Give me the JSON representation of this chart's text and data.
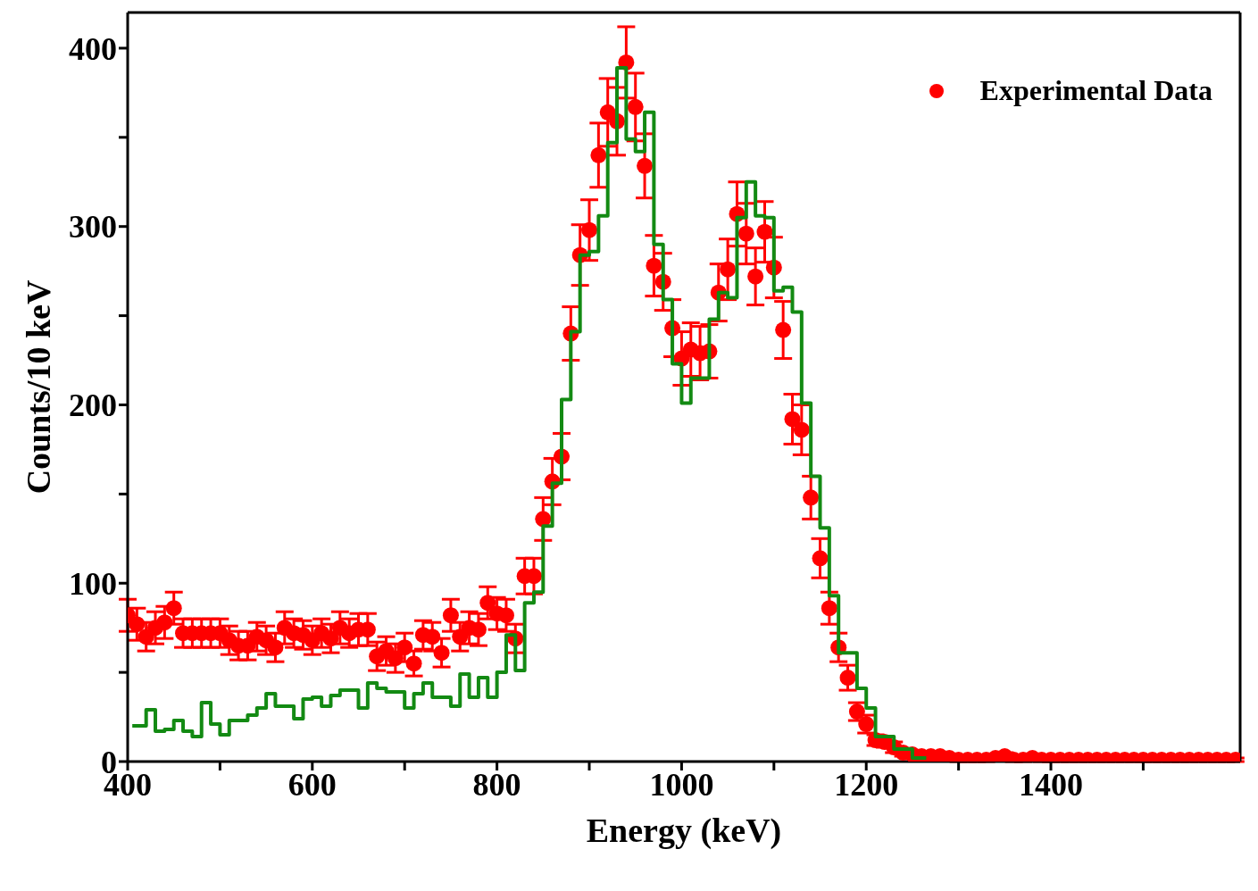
{
  "chart_data": {
    "type": "scatter",
    "xlabel": "Energy (keV)",
    "ylabel": "Counts/10 keV",
    "xlim": [
      400,
      1605
    ],
    "ylim": [
      0,
      420
    ],
    "xticks": [
      400,
      {
        "value": 500,
        "label": null
      },
      600,
      {
        "value": 700,
        "label": null
      },
      800,
      {
        "value": 900,
        "label": null
      },
      1000,
      {
        "value": 1100,
        "label": null
      },
      1200,
      {
        "value": 1300,
        "label": null
      },
      1400,
      {
        "value": 1500,
        "label": null
      }
    ],
    "yticks": [
      0,
      {
        "value": 50,
        "label": null
      },
      100,
      {
        "value": 150,
        "label": null
      },
      200,
      {
        "value": 250,
        "label": null
      },
      300,
      {
        "value": 350,
        "label": null
      },
      400
    ],
    "grid": false,
    "legend": "top right",
    "marker": "circle",
    "line_style": "solid",
    "series": [
      {
        "name": "Experimental Data",
        "color": "#ff0000",
        "x": [
          400,
          410,
          420,
          430,
          440,
          450,
          460,
          470,
          480,
          490,
          500,
          510,
          520,
          530,
          540,
          550,
          560,
          570,
          580,
          590,
          600,
          610,
          620,
          630,
          640,
          650,
          660,
          670,
          680,
          690,
          700,
          710,
          720,
          730,
          740,
          750,
          760,
          770,
          780,
          790,
          800,
          810,
          820,
          830,
          840,
          850,
          860,
          870,
          880,
          890,
          900,
          910,
          920,
          930,
          940,
          950,
          960,
          970,
          980,
          990,
          1000,
          1010,
          1020,
          1030,
          1040,
          1050,
          1060,
          1070,
          1080,
          1090,
          1100,
          1110,
          1120,
          1130,
          1140,
          1150,
          1160,
          1170,
          1180,
          1190,
          1200,
          1210,
          1220,
          1230,
          1240,
          1250,
          1260,
          1270,
          1280,
          1290,
          1300,
          1310,
          1320,
          1330,
          1340,
          1350,
          1360,
          1370,
          1380,
          1390,
          1400,
          1410,
          1420,
          1430,
          1440,
          1450,
          1460,
          1470,
          1480,
          1490,
          1500,
          1510,
          1520,
          1530,
          1540,
          1550,
          1560,
          1570,
          1580,
          1590,
          1600
        ],
        "values": [
          82,
          77,
          70,
          75,
          78,
          86,
          72,
          72,
          72,
          72,
          72,
          68,
          65,
          65,
          70,
          68,
          64,
          75,
          72,
          71,
          68,
          72,
          69,
          75,
          72,
          74,
          74,
          59,
          62,
          58,
          64,
          55,
          71,
          70,
          61,
          82,
          70,
          75,
          74,
          89,
          83,
          82,
          69,
          104,
          104,
          136,
          157,
          171,
          240,
          284,
          298,
          340,
          364,
          359,
          392,
          367,
          334,
          278,
          269,
          243,
          226,
          231,
          229,
          230,
          263,
          276,
          307,
          296,
          272,
          297,
          277,
          242,
          192,
          186,
          148,
          114,
          86,
          64,
          47,
          28,
          21,
          12,
          11,
          8,
          5,
          4,
          3,
          3,
          3,
          2,
          1,
          1,
          1,
          1,
          2,
          3,
          1,
          1,
          2,
          1,
          1,
          1,
          1,
          1,
          1,
          1,
          1,
          1,
          1,
          1,
          1,
          1,
          1,
          1,
          1,
          1,
          1,
          1,
          1,
          1,
          1
        ],
        "errors": [
          9,
          9,
          8,
          9,
          9,
          9,
          8,
          8,
          8,
          8,
          8,
          8,
          8,
          8,
          8,
          8,
          8,
          9,
          8,
          8,
          8,
          8,
          8,
          9,
          8,
          9,
          9,
          8,
          8,
          8,
          8,
          7,
          8,
          8,
          8,
          9,
          8,
          9,
          9,
          9,
          9,
          9,
          8,
          10,
          10,
          12,
          13,
          13,
          15,
          17,
          17,
          18,
          19,
          19,
          20,
          19,
          18,
          17,
          16,
          16,
          15,
          15,
          15,
          15,
          16,
          17,
          18,
          17,
          16,
          17,
          17,
          16,
          14,
          14,
          12,
          11,
          9,
          8,
          7,
          5,
          5,
          3,
          3,
          3,
          2,
          2,
          2,
          2,
          2,
          1,
          1,
          1,
          1,
          1,
          1,
          2,
          1,
          1,
          1,
          1,
          1,
          1,
          1,
          1,
          1,
          1,
          1,
          1,
          1,
          1,
          1,
          1,
          1,
          1,
          1,
          1,
          1,
          1,
          1,
          1,
          1
        ]
      },
      {
        "type": "step",
        "color": "#138a13",
        "marker": "none",
        "x": [
          405,
          415,
          425,
          435,
          445,
          455,
          465,
          475,
          485,
          495,
          505,
          515,
          525,
          535,
          545,
          555,
          565,
          575,
          585,
          595,
          605,
          615,
          625,
          635,
          645,
          655,
          665,
          675,
          685,
          695,
          705,
          715,
          725,
          735,
          745,
          755,
          765,
          775,
          785,
          795,
          805,
          815,
          825,
          835,
          845,
          855,
          865,
          875,
          885,
          895,
          905,
          915,
          925,
          935,
          945,
          955,
          965,
          975,
          985,
          995,
          1005,
          1015,
          1025,
          1035,
          1045,
          1055,
          1065,
          1075,
          1085,
          1095,
          1105,
          1115,
          1125,
          1135,
          1145,
          1155,
          1165,
          1175,
          1185,
          1195,
          1205,
          1215,
          1225,
          1235,
          1245,
          1255,
          1265
        ],
        "values": [
          20,
          20,
          29,
          17,
          18,
          23,
          17,
          14,
          33,
          21,
          15,
          23,
          23,
          26,
          30,
          38,
          31,
          31,
          24,
          35,
          36,
          31,
          37,
          40,
          40,
          30,
          44,
          41,
          39,
          39,
          30,
          38,
          44,
          36,
          36,
          31,
          49,
          36,
          47,
          36,
          50,
          71,
          51,
          89,
          95,
          132,
          156,
          203,
          241,
          284,
          286,
          306,
          347,
          389,
          349,
          342,
          364,
          290,
          259,
          223,
          201,
          215,
          215,
          248,
          263,
          260,
          305,
          325,
          306,
          305,
          264,
          266,
          252,
          201,
          160,
          131,
          93,
          61,
          61,
          41,
          30,
          14,
          14,
          7,
          7,
          2,
          2
        ]
      }
    ]
  }
}
